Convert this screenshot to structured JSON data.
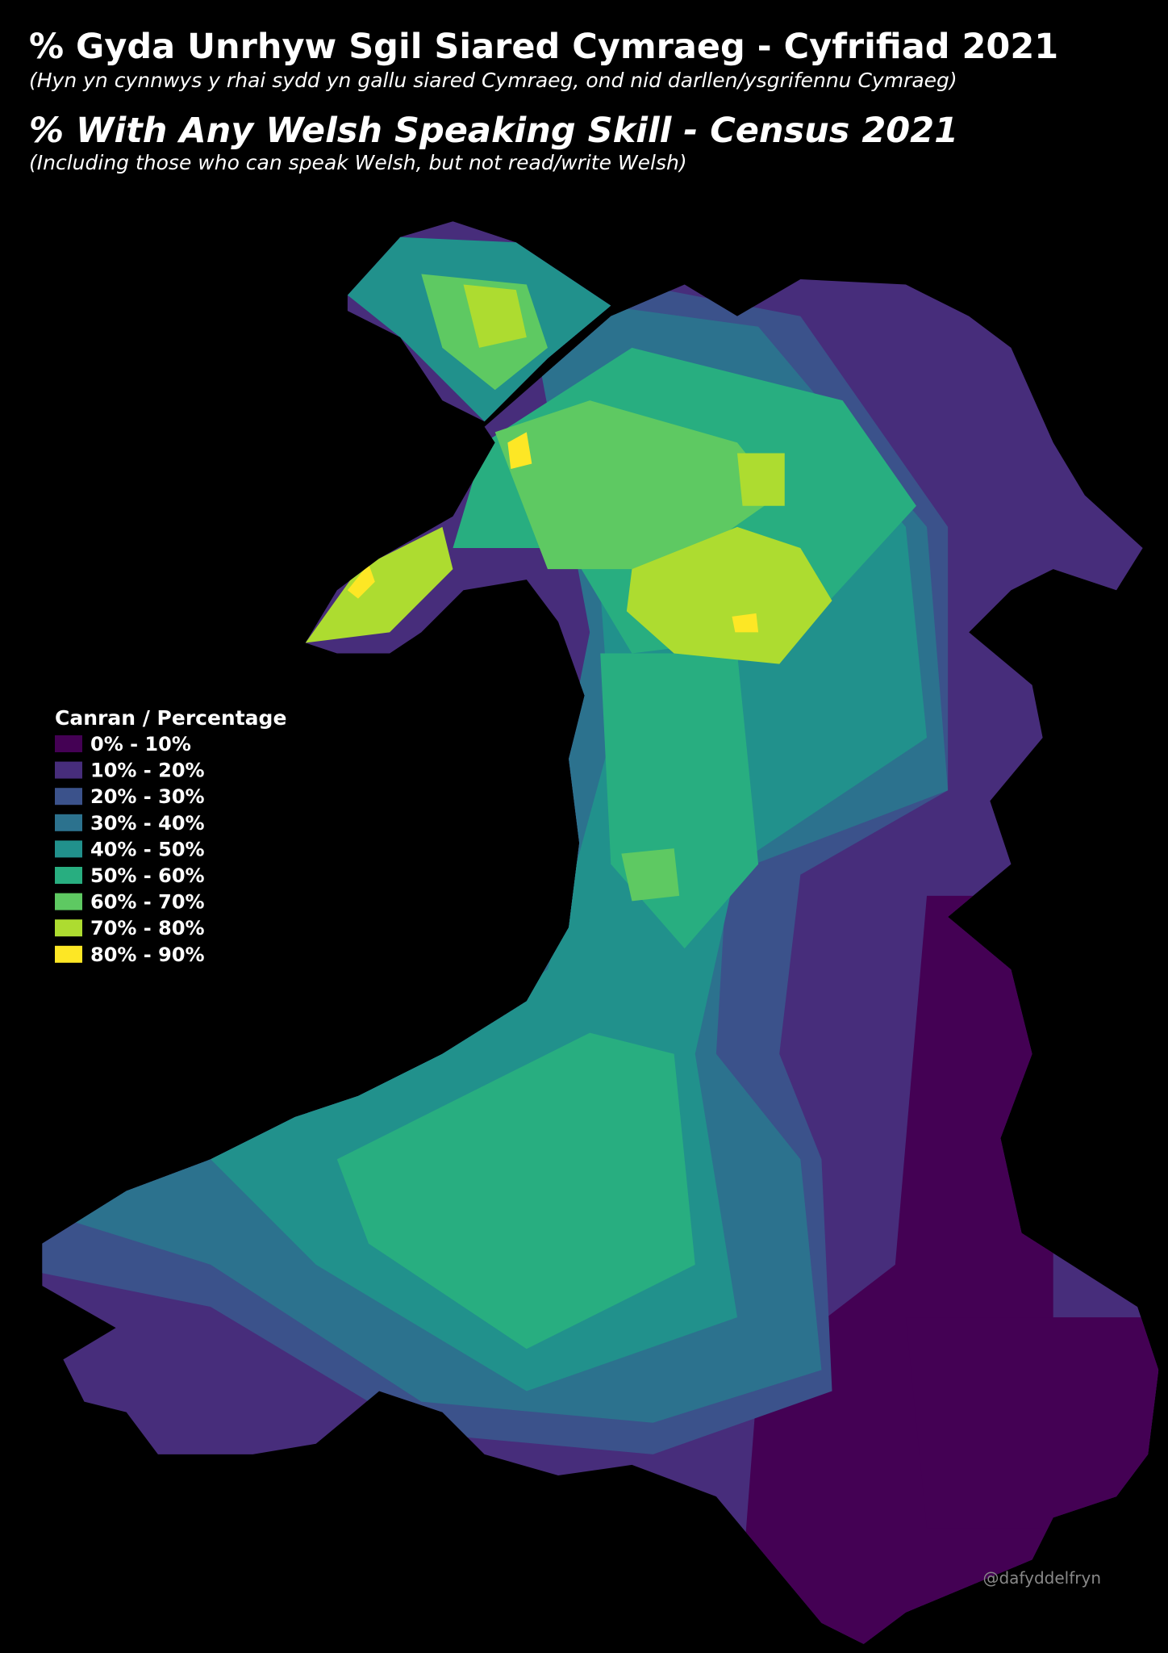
{
  "header": {
    "title_cy": "% Gyda Unrhyw Sgil Siared Cymraeg - Cyfrifiad 2021",
    "subtitle_cy": "(Hyn yn cynnwys y rhai sydd yn gallu siared Cymraeg, ond nid darllen/ysgrifennu Cymraeg)",
    "title_en": "% With Any Welsh Speaking Skill - Census 2021",
    "subtitle_en": "(Including those who can speak Welsh, but not read/write Welsh)"
  },
  "legend": {
    "title": "Canran / Percentage",
    "items": [
      {
        "label": "0% - 10%",
        "color": "#440154"
      },
      {
        "label": "10% - 20%",
        "color": "#472d7b"
      },
      {
        "label": "20% - 30%",
        "color": "#3b528b"
      },
      {
        "label": "30% - 40%",
        "color": "#2c728e"
      },
      {
        "label": "40% - 50%",
        "color": "#21918c"
      },
      {
        "label": "50% - 60%",
        "color": "#28ae80"
      },
      {
        "label": "60% - 70%",
        "color": "#5ec962"
      },
      {
        "label": "70% - 80%",
        "color": "#addc30"
      },
      {
        "label": "80% - 90%",
        "color": "#fde725"
      }
    ]
  },
  "credit": "@dafyddelfryn"
}
